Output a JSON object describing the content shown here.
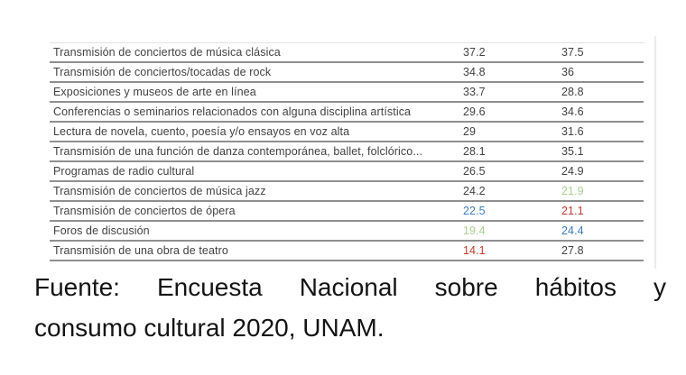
{
  "table": {
    "rows": [
      {
        "label": "Transmisión de conciertos de música clásica",
        "v1": "37.2",
        "v2": "37.5",
        "v1_color": "default",
        "v2_color": "default"
      },
      {
        "label": "Transmisión de conciertos/tocadas de rock",
        "v1": "34.8",
        "v2": "36",
        "v1_color": "default",
        "v2_color": "default"
      },
      {
        "label": "Exposiciones y museos de arte en línea",
        "v1": "33.7",
        "v2": "28.8",
        "v1_color": "default",
        "v2_color": "default"
      },
      {
        "label": "Conferencias o seminarios relacionados con alguna disciplina artística",
        "v1": "29.6",
        "v2": "34.6",
        "v1_color": "default",
        "v2_color": "default"
      },
      {
        "label": "Lectura de novela, cuento, poesía y/o ensayos en voz alta",
        "v1": "29",
        "v2": "31.6",
        "v1_color": "default",
        "v2_color": "default"
      },
      {
        "label": "Transmisión de una función de danza contemporánea, ballet, folclórico...",
        "v1": "28.1",
        "v2": "35.1",
        "v1_color": "default",
        "v2_color": "default"
      },
      {
        "label": "Programas de radio cultural",
        "v1": "26.5",
        "v2": "24.9",
        "v1_color": "default",
        "v2_color": "default"
      },
      {
        "label": "Transmisión de conciertos de música jazz",
        "v1": "24.2",
        "v2": "21.9",
        "v1_color": "default",
        "v2_color": "green"
      },
      {
        "label": "Transmisión de conciertos de ópera",
        "v1": "22.5",
        "v2": "21.1",
        "v1_color": "blue",
        "v2_color": "red"
      },
      {
        "label": "Foros de discusión",
        "v1": "19.4",
        "v2": "24.4",
        "v1_color": "green",
        "v2_color": "blue"
      },
      {
        "label": "Transmisión de una obra de teatro",
        "v1": "14.1",
        "v2": "27.8",
        "v1_color": "red",
        "v2_color": "default"
      }
    ]
  },
  "colors": {
    "default": "#424242",
    "green": "#a9d18e",
    "blue": "#3e7cba",
    "red": "#c0392b"
  },
  "caption": {
    "line1": "Fuente: Encuesta Nacional sobre hábitos y",
    "line2": "consumo cultural 2020, UNAM."
  }
}
